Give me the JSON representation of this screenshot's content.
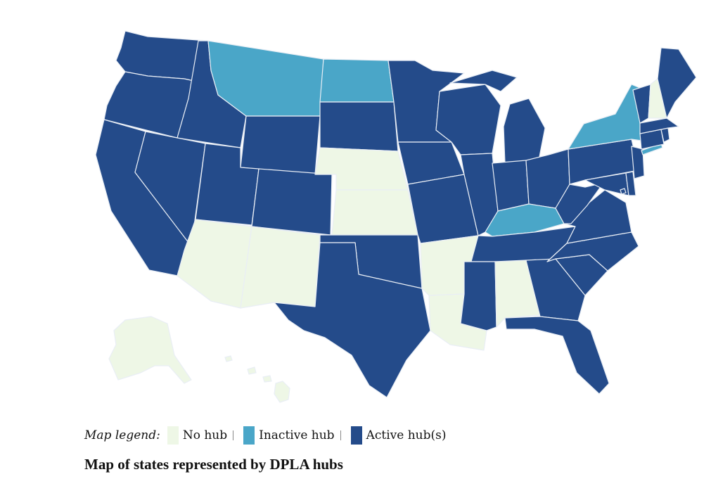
{
  "caption": "Map of states represented by DPLA hubs",
  "legend": {
    "title": "Map legend:",
    "items": [
      {
        "label": "No hub",
        "color": "#eef7e6"
      },
      {
        "label": "Inactive hub",
        "color": "#4aa6c8"
      },
      {
        "label": "Active hub(s)",
        "color": "#244b8a"
      }
    ]
  },
  "states": {
    "WA": "active",
    "OR": "active",
    "CA": "active",
    "ID": "active",
    "NV": "active",
    "MT": "inactive",
    "WY": "active",
    "UT": "active",
    "AZ": "none",
    "CO": "active",
    "NM": "none",
    "ND": "inactive",
    "SD": "active",
    "NE": "none",
    "KS": "none",
    "OK": "active",
    "TX": "active",
    "MN": "active",
    "IA": "active",
    "MO": "active",
    "AR": "none",
    "LA": "none",
    "WI": "active",
    "IL": "active",
    "MS": "active",
    "MI": "active",
    "IN": "active",
    "KY": "inactive",
    "TN": "active",
    "AL": "none",
    "OH": "active",
    "WV": "active",
    "GA": "active",
    "FL": "active",
    "SC": "active",
    "NC": "active",
    "VA": "active",
    "MD": "active",
    "DE": "active",
    "PA": "active",
    "NJ": "active",
    "NY": "inactive",
    "CT": "active",
    "RI": "active",
    "MA": "active",
    "VT": "active",
    "NH": "none",
    "ME": "active",
    "AK": "none",
    "HI": "none",
    "DC": "active"
  }
}
